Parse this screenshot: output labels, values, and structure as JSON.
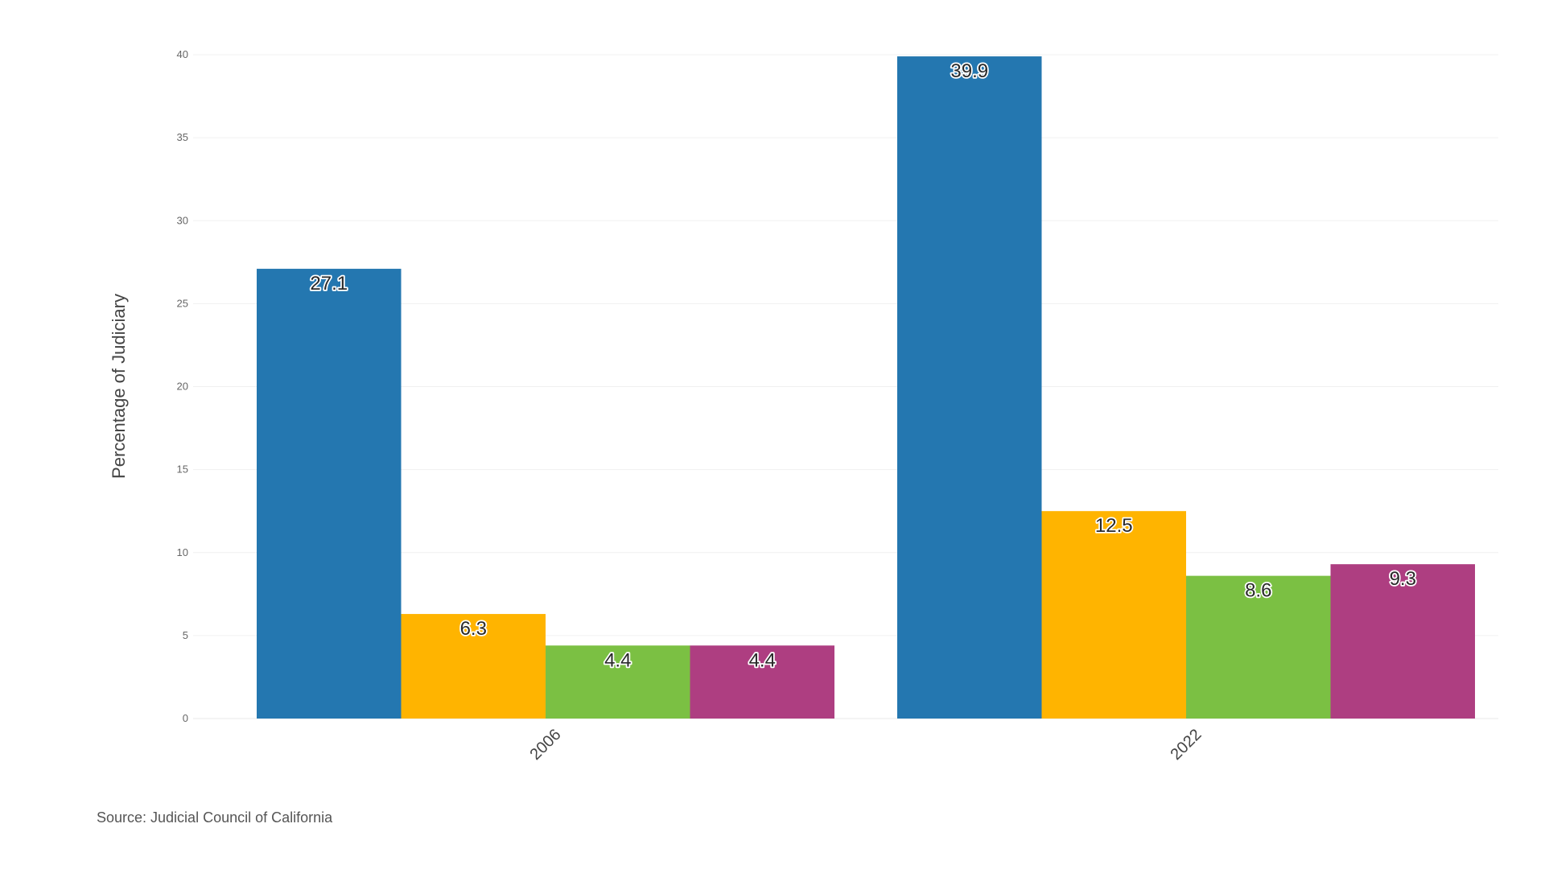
{
  "chart_data": {
    "type": "bar",
    "title": "",
    "xlabel": "",
    "ylabel": "Percentage of Judiciary",
    "categories": [
      "2006",
      "2022"
    ],
    "series": [
      {
        "name": "series-1",
        "color": "#2477b0",
        "values": [
          27.1,
          39.9
        ]
      },
      {
        "name": "series-2",
        "color": "#ffb400",
        "values": [
          6.3,
          12.5
        ]
      },
      {
        "name": "series-3",
        "color": "#7bc043",
        "values": [
          4.4,
          8.6
        ]
      },
      {
        "name": "series-4",
        "color": "#ae3e81",
        "values": [
          4.4,
          9.3
        ]
      }
    ],
    "ylim": [
      0,
      40
    ],
    "yticks": [
      0,
      5,
      10,
      15,
      20,
      25,
      30,
      35,
      40
    ],
    "grid": true,
    "legend": "none",
    "data_labels": true,
    "x_tick_rotation": -45
  },
  "footer": {
    "source": "Source: Judicial Council of California"
  }
}
